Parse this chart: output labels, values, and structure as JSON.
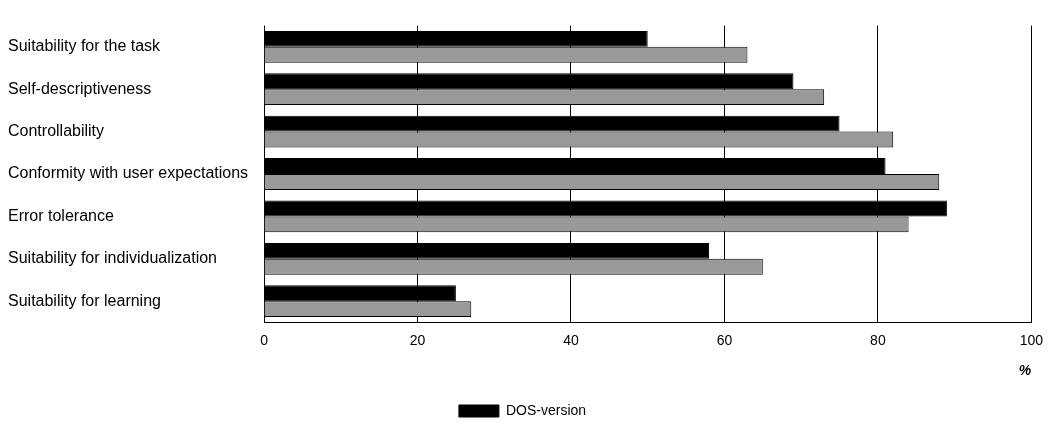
{
  "chart_data": {
    "type": "bar",
    "orientation": "horizontal",
    "categories": [
      "Suitability for the task",
      "Self-descriptiveness",
      "Controllability",
      "Conformity with user expectations",
      "Error tolerance",
      "Suitability for individualization",
      "Suitability for learning"
    ],
    "series": [
      {
        "name": "DOS-version",
        "color": "#000000",
        "values": [
          50,
          69,
          75,
          81,
          89,
          58,
          25
        ]
      },
      {
        "color": "#999999",
        "values": [
          63,
          73,
          82,
          88,
          84,
          65,
          27
        ]
      }
    ],
    "xlim": [
      0,
      100
    ],
    "xticks": [
      0,
      20,
      40,
      60,
      80,
      100
    ],
    "xlabel": "%",
    "grid": "x",
    "legend": "bottom"
  }
}
